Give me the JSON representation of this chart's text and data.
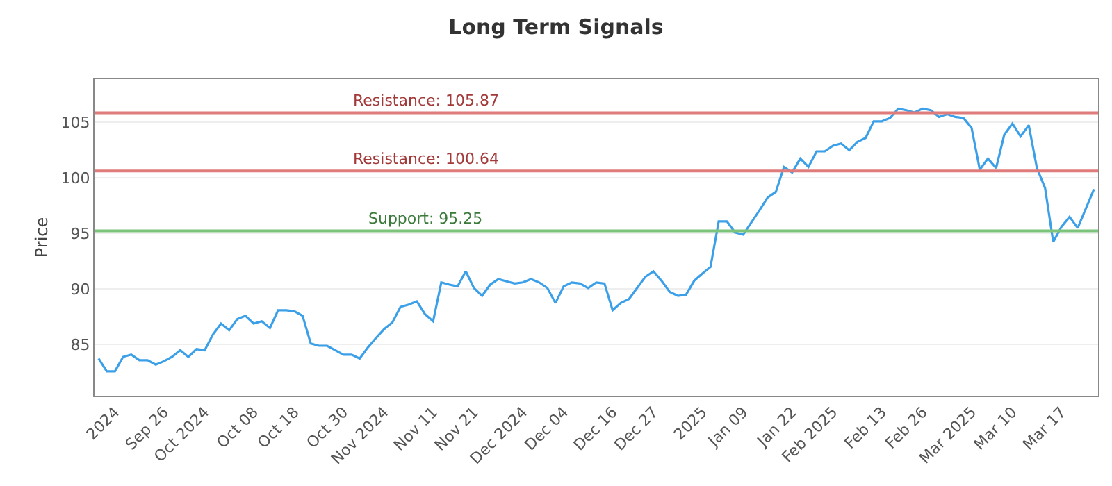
{
  "chart_data": {
    "type": "line",
    "title": "Long Term Signals",
    "ylabel": "Price",
    "categories": [
      null,
      null,
      "2024",
      null,
      null,
      null,
      null,
      null,
      "Sep 26",
      null,
      null,
      null,
      null,
      "Oct 2024",
      null,
      null,
      null,
      null,
      null,
      "Oct 08",
      null,
      null,
      null,
      null,
      "Oct 18",
      null,
      null,
      null,
      null,
      null,
      "Oct 30",
      null,
      null,
      null,
      null,
      "Nov 2024",
      null,
      null,
      null,
      null,
      null,
      "Nov 11",
      null,
      null,
      null,
      null,
      "Nov 21",
      null,
      null,
      null,
      null,
      null,
      "Dec 2024",
      null,
      null,
      null,
      null,
      "Dec 04",
      null,
      null,
      null,
      null,
      null,
      "Dec 16",
      null,
      null,
      null,
      null,
      "Dec 27",
      null,
      null,
      null,
      null,
      null,
      "2025",
      null,
      null,
      null,
      null,
      "Jan 09",
      null,
      null,
      null,
      null,
      null,
      "Jan 22",
      null,
      null,
      null,
      null,
      "Feb 2025",
      null,
      null,
      null,
      null,
      null,
      "Feb 13",
      null,
      null,
      null,
      null,
      "Feb 26",
      null,
      null,
      null,
      null,
      null,
      "Mar 2025",
      null,
      null,
      null,
      null,
      "Mar 10",
      null,
      null,
      null,
      null,
      null,
      "Mar 17",
      null,
      null,
      null,
      null
    ],
    "series": [
      {
        "color": "#3ca0e8",
        "values": [
          83.75,
          82.6,
          82.6,
          83.9,
          84.1,
          83.6,
          83.6,
          83.2,
          83.5,
          83.9,
          84.5,
          83.9,
          84.6,
          84.5,
          85.9,
          86.9,
          86.3,
          87.3,
          87.6,
          86.9,
          87.1,
          86.5,
          88.1,
          88.1,
          88.0,
          87.6,
          85.1,
          84.9,
          84.9,
          84.5,
          84.1,
          84.1,
          83.75,
          84.75,
          85.6,
          86.4,
          87.0,
          88.4,
          88.6,
          88.9,
          87.75,
          87.1,
          90.6,
          90.4,
          90.25,
          91.6,
          90.1,
          89.4,
          90.4,
          90.9,
          90.7,
          90.5,
          90.6,
          90.9,
          90.6,
          90.1,
          88.75,
          90.25,
          90.6,
          90.5,
          90.1,
          90.6,
          90.5,
          88.1,
          88.75,
          89.1,
          90.1,
          91.1,
          91.6,
          90.75,
          89.75,
          89.4,
          89.5,
          90.75,
          91.4,
          92.0,
          96.1,
          96.1,
          95.1,
          94.9,
          96,
          97.1,
          98.25,
          98.75,
          101,
          100.5,
          101.75,
          101,
          102.4,
          102.4,
          102.9,
          103.1,
          102.5,
          103.25,
          103.6,
          105.1,
          105.1,
          105.4,
          106.25,
          106.1,
          105.9,
          106.25,
          106.1,
          105.5,
          105.75,
          105.5,
          105.4,
          104.5,
          100.75,
          101.75,
          100.9,
          103.9,
          104.9,
          103.75,
          104.75,
          100.9,
          99.1,
          94.25,
          95.6,
          96.5,
          95.5,
          97.25,
          99
        ]
      }
    ],
    "ylim": [
      80.4,
      108.9
    ],
    "yticks": [
      85,
      90,
      95,
      100,
      105
    ],
    "grid": "y",
    "marker": "none",
    "line_style": "solid",
    "ref_lines": [
      {
        "axis": "y",
        "value": 105.87,
        "label": "Resistance: 105.87",
        "color": "#e07b7b"
      },
      {
        "axis": "y",
        "value": 100.64,
        "label": "Resistance: 100.64",
        "color": "#e07b7b"
      },
      {
        "axis": "y",
        "value": 95.25,
        "label": "Support: 95.25",
        "color": "#7cc47c"
      }
    ]
  }
}
